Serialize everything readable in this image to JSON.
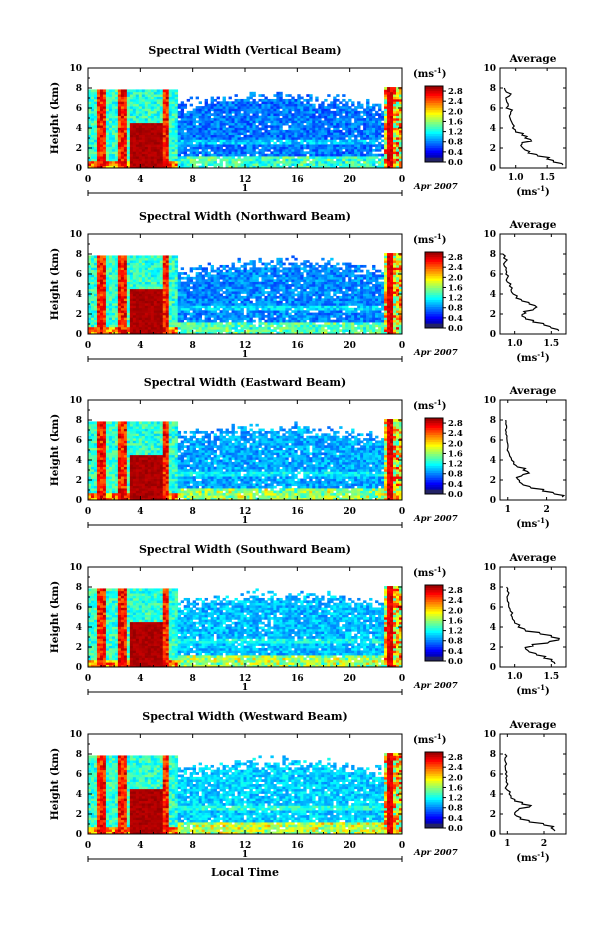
{
  "figure": {
    "x_title": "Local Time",
    "date_label": "Apr 2007",
    "day_label": "1",
    "cbar_unit": "(ms",
    "cbar_unit_exp": "-1",
    "cbar_unit_close": ")",
    "avg_title": "Average",
    "avg_xlabel": "(ms",
    "avg_xlabel_exp": "-1",
    "avg_xlabel_close": ")"
  },
  "chart_data": [
    {
      "type": "heatmap",
      "title": "Spectral Width (Vertical Beam)",
      "xlabel": "",
      "ylabel": "Height (km)",
      "x_ticks": [
        "0",
        "4",
        "8",
        "12",
        "16",
        "20",
        "0"
      ],
      "y_ticks": [
        "0",
        "2",
        "4",
        "6",
        "8",
        "10"
      ],
      "xlim": [
        0,
        24
      ],
      "ylim": [
        0,
        10
      ],
      "colorbar": {
        "min": 0,
        "max": 3,
        "ticks": [
          "0.0",
          "0.4",
          "0.8",
          "1.2",
          "1.6",
          "2.0",
          "2.4",
          "2.8"
        ]
      },
      "average": {
        "title": "Average",
        "xlim": [
          0.75,
          1.8
        ],
        "x_ticks": [
          "1.0",
          "1.5"
        ],
        "x_tick_values": [
          1.0,
          1.5
        ],
        "y_ticks": [
          "0",
          "2",
          "4",
          "6",
          "8",
          "10"
        ],
        "heights": [
          0.3,
          0.6,
          0.9,
          1.2,
          1.5,
          1.8,
          2.1,
          2.4,
          2.7,
          3.0,
          3.3,
          3.6,
          4.0,
          4.4,
          4.8,
          5.2,
          5.6,
          6.0,
          6.4,
          6.8,
          7.2,
          7.6,
          8.0
        ],
        "values": [
          1.75,
          1.6,
          1.5,
          1.35,
          1.2,
          1.15,
          1.1,
          1.1,
          1.25,
          1.15,
          1.1,
          1.0,
          0.95,
          0.95,
          0.92,
          0.9,
          0.92,
          0.85,
          0.88,
          0.85,
          0.9,
          0.85,
          0.82
        ]
      }
    },
    {
      "type": "heatmap",
      "title": "Spectral Width (Northward Beam)",
      "xlabel": "",
      "ylabel": "Height (km)",
      "x_ticks": [
        "0",
        "4",
        "8",
        "12",
        "16",
        "20",
        "0"
      ],
      "y_ticks": [
        "0",
        "2",
        "4",
        "6",
        "8",
        "10"
      ],
      "xlim": [
        0,
        24
      ],
      "ylim": [
        0,
        10
      ],
      "colorbar": {
        "min": 0,
        "max": 3,
        "ticks": [
          "0.0",
          "0.4",
          "0.8",
          "1.2",
          "1.6",
          "2.0",
          "2.4",
          "2.8"
        ]
      },
      "average": {
        "title": "Average",
        "xlim": [
          0.8,
          1.7
        ],
        "x_ticks": [
          "1.0",
          "1.5"
        ],
        "x_tick_values": [
          1.0,
          1.5
        ],
        "y_ticks": [
          "0",
          "2",
          "4",
          "6",
          "8",
          "10"
        ],
        "heights": [
          0.3,
          0.6,
          0.9,
          1.2,
          1.5,
          1.8,
          2.1,
          2.4,
          2.7,
          3.0,
          3.3,
          3.6,
          4.0,
          4.4,
          4.8,
          5.2,
          5.6,
          6.0,
          6.4,
          6.8,
          7.2,
          7.6,
          8.0
        ],
        "values": [
          1.6,
          1.5,
          1.4,
          1.25,
          1.15,
          1.1,
          1.15,
          1.25,
          1.3,
          1.2,
          1.1,
          1.02,
          0.98,
          0.95,
          0.93,
          0.9,
          0.9,
          0.88,
          0.88,
          0.86,
          0.87,
          0.85,
          0.84
        ]
      }
    },
    {
      "type": "heatmap",
      "title": "Spectral Width (Eastward Beam)",
      "xlabel": "",
      "ylabel": "Height (km)",
      "x_ticks": [
        "0",
        "4",
        "8",
        "12",
        "16",
        "20",
        "0"
      ],
      "y_ticks": [
        "0",
        "2",
        "4",
        "6",
        "8",
        "10"
      ],
      "xlim": [
        0,
        24
      ],
      "ylim": [
        0,
        10
      ],
      "colorbar": {
        "min": 0,
        "max": 3,
        "ticks": [
          "0.0",
          "0.4",
          "0.8",
          "1.2",
          "1.6",
          "2.0",
          "2.4",
          "2.8"
        ]
      },
      "average": {
        "title": "Average",
        "xlim": [
          0.8,
          2.5
        ],
        "x_ticks": [
          "1",
          "2"
        ],
        "x_tick_values": [
          1,
          2
        ],
        "y_ticks": [
          "0",
          "2",
          "4",
          "6",
          "8",
          "10"
        ],
        "heights": [
          0.3,
          0.6,
          0.9,
          1.2,
          1.5,
          1.8,
          2.1,
          2.4,
          2.7,
          3.0,
          3.3,
          3.6,
          4.0,
          4.4,
          4.8,
          5.2,
          5.6,
          6.0,
          6.4,
          6.8,
          7.2,
          7.6,
          8.0
        ],
        "values": [
          2.4,
          2.2,
          1.9,
          1.6,
          1.4,
          1.3,
          1.25,
          1.35,
          1.55,
          1.4,
          1.25,
          1.15,
          1.1,
          1.05,
          1.02,
          1.0,
          1.0,
          0.98,
          0.98,
          0.96,
          0.97,
          0.95,
          0.95
        ]
      }
    },
    {
      "type": "heatmap",
      "title": "Spectral Width (Southward Beam)",
      "xlabel": "",
      "ylabel": "Height (km)",
      "x_ticks": [
        "0",
        "4",
        "8",
        "12",
        "16",
        "20",
        "0"
      ],
      "y_ticks": [
        "0",
        "2",
        "4",
        "6",
        "8",
        "10"
      ],
      "xlim": [
        0,
        24
      ],
      "ylim": [
        0,
        10
      ],
      "colorbar": {
        "min": 0,
        "max": 3,
        "ticks": [
          "0.0",
          "0.4",
          "0.8",
          "1.2",
          "1.6",
          "2.0",
          "2.4",
          "2.8"
        ]
      },
      "average": {
        "title": "Average",
        "xlim": [
          0.8,
          1.7
        ],
        "x_ticks": [
          "1.0",
          "1.5"
        ],
        "x_tick_values": [
          1.0,
          1.5
        ],
        "y_ticks": [
          "0",
          "2",
          "4",
          "6",
          "8",
          "10"
        ],
        "heights": [
          0.3,
          0.6,
          0.9,
          1.2,
          1.5,
          1.8,
          2.1,
          2.4,
          2.7,
          3.0,
          3.3,
          3.6,
          4.0,
          4.4,
          4.8,
          5.2,
          5.6,
          6.0,
          6.4,
          6.8,
          7.2,
          7.6,
          8.0
        ],
        "values": [
          1.55,
          1.5,
          1.4,
          1.3,
          1.2,
          1.15,
          1.25,
          1.45,
          1.6,
          1.5,
          1.35,
          1.15,
          1.05,
          1.0,
          0.97,
          0.95,
          0.94,
          0.92,
          0.92,
          0.9,
          0.91,
          0.9,
          0.89
        ]
      }
    },
    {
      "type": "heatmap",
      "title": "Spectral Width (Westward Beam)",
      "xlabel": "Local Time",
      "ylabel": "Height (km)",
      "x_ticks": [
        "0",
        "4",
        "8",
        "12",
        "16",
        "20",
        "0"
      ],
      "y_ticks": [
        "0",
        "2",
        "4",
        "6",
        "8",
        "10"
      ],
      "xlim": [
        0,
        24
      ],
      "ylim": [
        0,
        10
      ],
      "colorbar": {
        "min": 0,
        "max": 3,
        "ticks": [
          "0.0",
          "0.4",
          "0.8",
          "1.2",
          "1.6",
          "2.0",
          "2.4",
          "2.8"
        ]
      },
      "average": {
        "title": "Average",
        "xlim": [
          0.8,
          2.6
        ],
        "x_ticks": [
          "1",
          "2"
        ],
        "x_tick_values": [
          1,
          2
        ],
        "y_ticks": [
          "0",
          "2",
          "4",
          "6",
          "8",
          "10"
        ],
        "heights": [
          0.3,
          0.6,
          0.9,
          1.2,
          1.5,
          1.8,
          2.1,
          2.4,
          2.7,
          3.0,
          3.3,
          3.6,
          4.0,
          4.4,
          4.8,
          5.2,
          5.6,
          6.0,
          6.4,
          6.8,
          7.2,
          7.6,
          8.0
        ],
        "values": [
          2.3,
          2.2,
          2.0,
          1.6,
          1.35,
          1.25,
          1.2,
          1.3,
          1.6,
          1.4,
          1.2,
          1.1,
          1.05,
          1.0,
          0.98,
          0.97,
          0.96,
          0.95,
          0.95,
          0.94,
          0.95,
          0.94,
          0.93
        ]
      }
    }
  ]
}
